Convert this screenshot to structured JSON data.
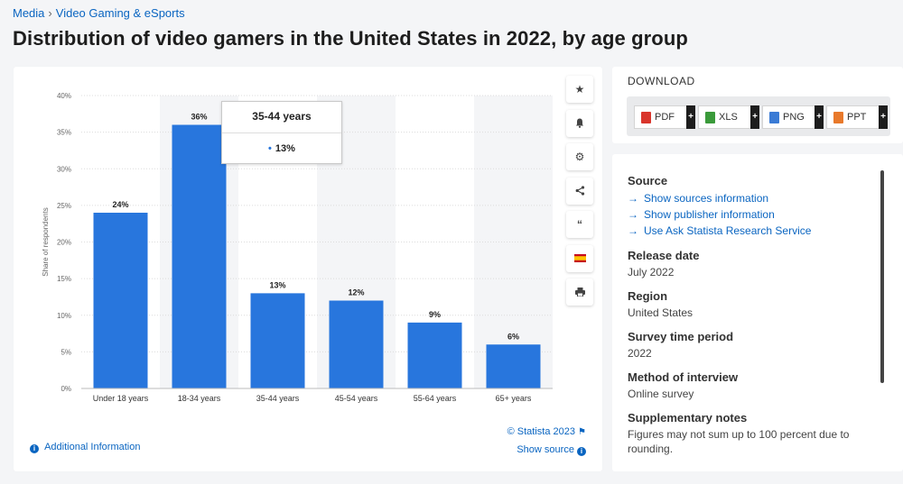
{
  "breadcrumb": {
    "root": "Media",
    "separator": "›",
    "section": "Video Gaming & eSports"
  },
  "page_title": "Distribution of video gamers in the United States in 2022, by age group",
  "chart_data": {
    "type": "bar",
    "categories": [
      "Under 18 years",
      "18-34 years",
      "35-44 years",
      "45-54 years",
      "55-64 years",
      "65+ years"
    ],
    "values": [
      24,
      36,
      13,
      12,
      9,
      6
    ],
    "data_labels": [
      "24%",
      "36%",
      "13%",
      "12%",
      "9%",
      "6%"
    ],
    "ylabel": "Share of respondents",
    "ylim": [
      0,
      40
    ],
    "y_ticks": [
      "0%",
      "5%",
      "10%",
      "15%",
      "20%",
      "25%",
      "30%",
      "35%",
      "40%"
    ],
    "bar_color": "#2876dd",
    "grid": true,
    "alternating_bands": true
  },
  "tooltip": {
    "title": "35-44 years",
    "value": "13%"
  },
  "toolbar": [
    "star-icon",
    "bell-icon",
    "gear-icon",
    "share-icon",
    "quote-icon",
    "flag-icon",
    "print-icon"
  ],
  "footer": {
    "credit": "© Statista 2023",
    "show_source": "Show source",
    "additional_info": "Additional Information"
  },
  "download": {
    "title": "DOWNLOAD",
    "buttons": [
      {
        "label": "PDF",
        "color": "#d9352c"
      },
      {
        "label": "XLS",
        "color": "#3a9a3a"
      },
      {
        "label": "PNG",
        "color": "#3a7bd5"
      },
      {
        "label": "PPT",
        "color": "#e8792b"
      }
    ],
    "plus": "+"
  },
  "info": {
    "source_heading": "Source",
    "links": [
      "Show sources information",
      "Show publisher information",
      "Use Ask Statista Research Service"
    ],
    "release_heading": "Release date",
    "release_value": "July 2022",
    "region_heading": "Region",
    "region_value": "United States",
    "survey_heading": "Survey time period",
    "survey_value": "2022",
    "method_heading": "Method of interview",
    "method_value": "Online survey",
    "notes_heading": "Supplementary notes",
    "notes_value": "Figures may not sum up to 100 percent due to rounding."
  }
}
